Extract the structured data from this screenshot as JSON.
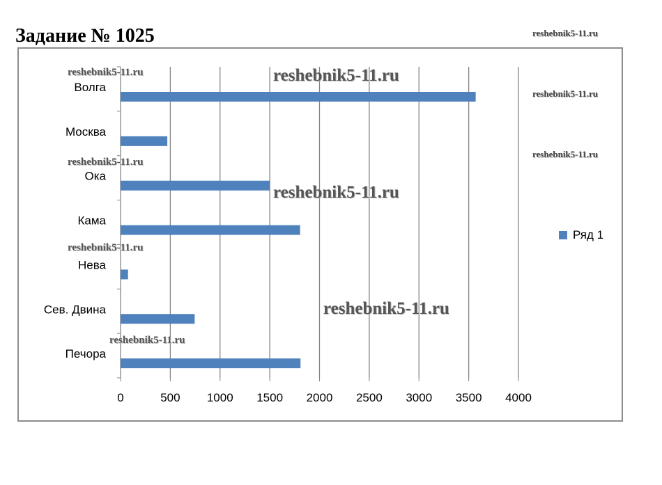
{
  "title": "Задание № 1025",
  "watermark": "reshebnik5-11.ru",
  "chart_data": {
    "type": "bar",
    "orientation": "horizontal",
    "categories": [
      "Волга",
      "Москва",
      "Ока",
      "Кама",
      "Нева",
      "Сев. Двина",
      "Печора"
    ],
    "series": [
      {
        "name": "Ряд 1",
        "values": [
          3570,
          470,
          1500,
          1805,
          75,
          745,
          1809
        ],
        "color": "#4f81bd"
      }
    ],
    "xlim": [
      0,
      4000
    ],
    "xticks": [
      "0",
      "500",
      "1000",
      "1500",
      "2000",
      "2500",
      "3000",
      "3500",
      "4000"
    ],
    "grid": true,
    "legend": "right"
  }
}
